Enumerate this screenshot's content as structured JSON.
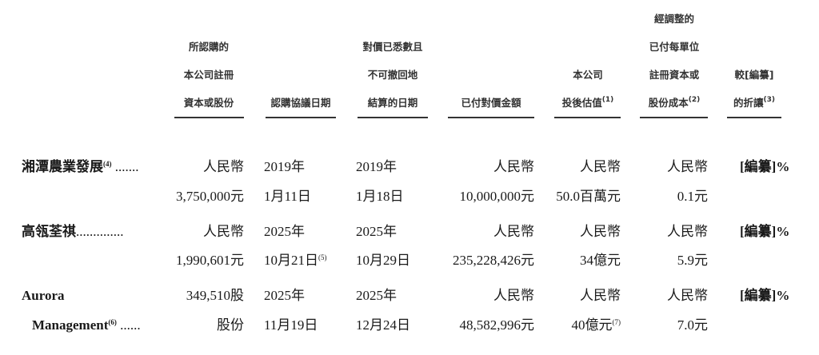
{
  "headers": [
    {
      "lines": [
        "所認購的",
        "本公司註冊",
        "資本或股份"
      ],
      "sup": ""
    },
    {
      "lines": [
        "認購協議日期"
      ],
      "sup": ""
    },
    {
      "lines": [
        "對價已悉數且",
        "不可撤回地",
        "結算的日期"
      ],
      "sup": ""
    },
    {
      "lines": [
        "已付對價金額"
      ],
      "sup": ""
    },
    {
      "lines": [
        "本公司",
        "投後估值"
      ],
      "sup": "(1)"
    },
    {
      "lines": [
        "經調整的",
        "已付每單位",
        "註冊資本或",
        "股份成本"
      ],
      "sup": "(2)"
    },
    {
      "lines": [
        "較[編纂]",
        "的折讓"
      ],
      "sup": "(3)"
    }
  ],
  "rows": [
    {
      "name": {
        "text": "湘潭農業發展",
        "sup": "(4)",
        "leader": " ......."
      },
      "cells": [
        {
          "text": "人民幣"
        },
        {
          "text": "2019年"
        },
        {
          "text": "2019年"
        },
        {
          "text": "人民幣"
        },
        {
          "text": "人民幣"
        },
        {
          "text": "人民幣"
        },
        {
          "text": "[編纂]%"
        }
      ]
    },
    {
      "name": {
        "text": "",
        "sup": "",
        "leader": ""
      },
      "cells": [
        {
          "text": "3,750,000元"
        },
        {
          "text": "1月11日"
        },
        {
          "text": "1月18日"
        },
        {
          "text": "10,000,000元"
        },
        {
          "text": "50.0百萬元"
        },
        {
          "text": "0.1元"
        },
        {
          "text": ""
        }
      ]
    },
    {
      "name": {
        "text": "高瓴荃祺",
        "sup": "",
        "leader": ".............."
      },
      "cells": [
        {
          "text": "人民幣"
        },
        {
          "text": "2025年"
        },
        {
          "text": "2025年"
        },
        {
          "text": "人民幣"
        },
        {
          "text": "人民幣"
        },
        {
          "text": "人民幣"
        },
        {
          "text": "[編纂]%"
        }
      ]
    },
    {
      "name": {
        "text": "",
        "sup": "",
        "leader": ""
      },
      "cells": [
        {
          "text": "1,990,601元"
        },
        {
          "text": "10月21日",
          "sup": "(5)"
        },
        {
          "text": "10月29日"
        },
        {
          "text": "235,228,426元"
        },
        {
          "text": "34億元"
        },
        {
          "text": "5.9元"
        },
        {
          "text": ""
        }
      ]
    },
    {
      "name": {
        "text": "Aurora",
        "sup": "",
        "leader": ""
      },
      "cells": [
        {
          "text": "349,510股"
        },
        {
          "text": "2025年"
        },
        {
          "text": "2025年"
        },
        {
          "text": "人民幣"
        },
        {
          "text": "人民幣"
        },
        {
          "text": "人民幣"
        },
        {
          "text": "[編纂]%"
        }
      ]
    },
    {
      "name": {
        "text": "Management",
        "sup": "(6)",
        "leader": " ......",
        "indent": true
      },
      "cells": [
        {
          "text": "股份"
        },
        {
          "text": "11月19日"
        },
        {
          "text": "12月24日"
        },
        {
          "text": "48,582,996元"
        },
        {
          "text": "40億元",
          "sup": "(7)"
        },
        {
          "text": "7.0元"
        },
        {
          "text": ""
        }
      ]
    }
  ]
}
